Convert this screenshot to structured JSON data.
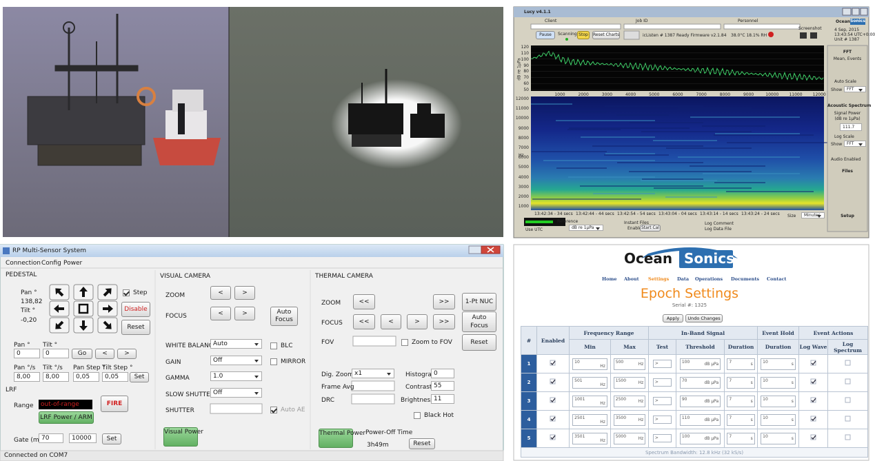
{
  "lucy": {
    "title": "Lucy v4.1.1",
    "fields": [
      "Client",
      "Job ID",
      "Personnel"
    ],
    "buttons": [
      "Pause",
      "Scanning",
      "Stop",
      "Reset Charts"
    ],
    "status": "icListen # 1387 Ready  Firmware v2.1.84",
    "env": "38.0°C 18.1% RH",
    "screenshot": "Screenshot",
    "brand": [
      "Ocean",
      "Sonics"
    ],
    "clock": [
      "4 Sep, 2015",
      "13:43:54 UTC+0:00",
      "Unit # 1387"
    ],
    "spectrum": {
      "ylabel": "dB re 1µPa",
      "yticks": [
        120,
        110,
        100,
        90,
        80,
        70,
        60,
        50
      ],
      "xticks": [
        1000,
        2000,
        3000,
        4000,
        5000,
        6000,
        7000,
        8000,
        9000,
        10000,
        11000,
        12000
      ]
    },
    "spectrogram": {
      "ylabel": "Hz",
      "yticks": [
        12000,
        11000,
        10000,
        9000,
        8000,
        7000,
        6000,
        5000,
        4000,
        3000,
        2000,
        1000
      ],
      "xticks": [
        "13:42:34 - 34 secs",
        "13:42:44 - 44 secs",
        "13:42:54 - 54 secs",
        "13:43:04 - 04 secs",
        "13:43:14 - 14 secs",
        "13:43:24 - 24 secs"
      ]
    },
    "side": {
      "fft": "FFT",
      "mean": "Mean, Events",
      "auto": "Auto Scale",
      "show": "Show",
      "fftsel": "FFT",
      "spectrum": "Acoustic Spectrum",
      "power": "Signal Power",
      "unit": "(dB re 1µPa)",
      "value": "111.7",
      "log": "Log Scale",
      "audio": "Audio Enabled",
      "files": "Files",
      "setup": "Setup"
    },
    "bottom": {
      "utc": "Use UTC",
      "reference": "Reference",
      "unit": "dB re 1µPa",
      "instant": "Instant Files",
      "enable": "Enable",
      "cal": "Start Cal",
      "comment": "Log Comment",
      "file": "Log Data File",
      "size": "Size",
      "minutes": "Minutes"
    }
  },
  "rp": {
    "title": "RP Multi-Sensor System",
    "menu": [
      "Connection",
      "Config",
      "Power"
    ],
    "status": "Connected on COM7",
    "pedestal": {
      "title": "PEDESTAL",
      "pan_label": "Pan °",
      "pan": "138,82",
      "tilt_label": "Tilt °",
      "tilt": "-0,20",
      "step": "Step",
      "disable": "Disable",
      "reset": "Reset",
      "goto": {
        "pan": "Pan °",
        "tilt": "Tilt °",
        "pan_value": "0",
        "tilt_value": "0",
        "go": "Go",
        "prev": "<",
        "next": ">"
      },
      "speed": {
        "labels": [
          "Pan °/s",
          "Tilt °/s",
          "Pan Step °",
          "Tilt Step °"
        ],
        "values": [
          "8,00",
          "8,00",
          "0,05",
          "0,05"
        ],
        "set": "Set"
      },
      "lrf": {
        "title": "LRF",
        "range": "Range",
        "reading": "out-of-range",
        "fire": "FIRE",
        "power": "LRF Power / ARM",
        "gate": "Gate (m)",
        "gate_min": "70",
        "gate_max": "10000",
        "set": "Set"
      }
    },
    "visual": {
      "title": "VISUAL CAMERA",
      "zoom": "ZOOM",
      "focus": "FOCUS",
      "prev": "<",
      "next": ">",
      "auto_focus": "Auto Focus",
      "settings": [
        {
          "label": "WHITE BALANCE",
          "value": "Auto"
        },
        {
          "label": "GAIN",
          "value": "Off"
        },
        {
          "label": "GAMMA",
          "value": "1.0"
        },
        {
          "label": "SLOW SHUTTER",
          "value": "Off"
        },
        {
          "label": "SHUTTER"
        }
      ],
      "blc": "BLC",
      "mirror": "MIRROR",
      "auto_ae": "Auto AE",
      "power": "Visual Power"
    },
    "thermal": {
      "title": "THERMAL CAMERA",
      "zoom": "ZOOM",
      "focus": "FOCUS",
      "fast_back": "<<",
      "back": "<",
      "fwd": ">",
      "fast_fwd": ">>",
      "nuc": "1-Pt NUC",
      "auto_focus": "Auto Focus",
      "fov": "FOV",
      "zoom_to_fov": "Zoom to FOV",
      "reset": "Reset",
      "dig_zoom": "Dig. Zoom",
      "dig_zoom_value": "x1",
      "frame_avg": "Frame Avg",
      "drc": "DRC",
      "histogram": "Histogram",
      "histogram_value": 0,
      "contrast": "Contrast",
      "contrast_value": 55,
      "brightness": "Brightness",
      "brightness_value": 11,
      "black_hot": "Black Hot",
      "power": "Thermal Power",
      "power_off": "Power-Off Time",
      "power_off_value": "3h49m",
      "reset_timer": "Reset"
    }
  },
  "web": {
    "brand": [
      "Ocean",
      "Sonics"
    ],
    "nav": [
      "Home",
      "About",
      "Settings",
      "Data",
      "Operations",
      "Documents",
      "Contact"
    ],
    "title": "Epoch Settings",
    "serial": "Serial #: 1325",
    "buttons": [
      "Apply",
      "Undo Changes"
    ],
    "groups": [
      "#",
      "Enabled",
      "Frequency Range",
      "In-Band Signal",
      "Event Hold",
      "Event Actions"
    ],
    "columns": [
      "Min",
      "Max",
      "Test",
      "Threshold",
      "Duration",
      "Duration",
      "Log Wave",
      "Log Spectrum"
    ],
    "units": {
      "freq": "Hz",
      "level": "dB µPa",
      "time": "s"
    },
    "rows": [
      {
        "n": 1,
        "min": 10,
        "max": 500,
        "test": ">",
        "threshold": 100,
        "duration": 7,
        "hold": 10
      },
      {
        "n": 2,
        "min": 501,
        "max": 1500,
        "test": ">",
        "threshold": 70,
        "duration": 7,
        "hold": 10
      },
      {
        "n": 3,
        "min": 1001,
        "max": 2500,
        "test": ">",
        "threshold": 90,
        "duration": 7,
        "hold": 10
      },
      {
        "n": 4,
        "min": 2501,
        "max": 3500,
        "test": ">",
        "threshold": 110,
        "duration": 7,
        "hold": 10
      },
      {
        "n": 5,
        "min": 3501,
        "max": 5000,
        "test": ">",
        "threshold": 100,
        "duration": 7,
        "hold": 10
      }
    ],
    "footer": "Spectrum Bandwidth: 12.8 kHz (32 kS/s)"
  }
}
